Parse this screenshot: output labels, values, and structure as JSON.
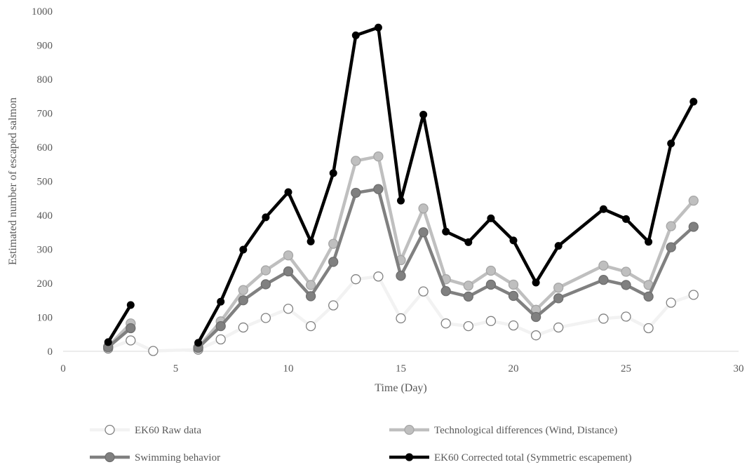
{
  "chart_data": {
    "type": "line",
    "xlabel": "Time (Day)",
    "ylabel": "Estimated number of escaped salmon",
    "xlim": [
      0,
      30
    ],
    "ylim": [
      0,
      1000
    ],
    "xticks": [
      0,
      5,
      10,
      15,
      20,
      25,
      30
    ],
    "yticks": [
      0,
      100,
      200,
      300,
      400,
      500,
      600,
      700,
      800,
      900,
      1000
    ],
    "grid": false,
    "legend_position": "bottom",
    "x": [
      2,
      3,
      4,
      6,
      7,
      8,
      9,
      10,
      11,
      12,
      13,
      14,
      15,
      16,
      17,
      18,
      19,
      20,
      21,
      22,
      24,
      25,
      26,
      27,
      28
    ],
    "series": [
      {
        "name": "EK60 Raw data",
        "color": "#f2f2f2",
        "marker_fill": "#ffffff",
        "marker_stroke": "#808080",
        "values": [
          8,
          32,
          1,
          5,
          35,
          70,
          98,
          125,
          74,
          135,
          212,
          220,
          97,
          176,
          82,
          74,
          89,
          76,
          47,
          70,
          96,
          102,
          68,
          143,
          166
        ]
      },
      {
        "name": "Technological differences (Wind, Distance)",
        "color": "#bfbfbf",
        "marker_fill": "#bfbfbf",
        "marker_stroke": "#a6a6a6",
        "values": [
          14,
          82,
          null,
          12,
          88,
          180,
          238,
          282,
          195,
          316,
          560,
          573,
          268,
          420,
          212,
          193,
          237,
          196,
          122,
          187,
          252,
          234,
          195,
          368,
          443
        ]
      },
      {
        "name": "Swimming behavior",
        "color": "#808080",
        "marker_fill": "#808080",
        "marker_stroke": "#6e6e6e",
        "values": [
          12,
          68,
          null,
          10,
          74,
          150,
          197,
          235,
          162,
          263,
          466,
          477,
          222,
          350,
          177,
          161,
          196,
          163,
          101,
          156,
          210,
          195,
          161,
          306,
          366
        ]
      },
      {
        "name": "EK60 Corrected total (Symmetric escapement)",
        "color": "#000000",
        "marker_fill": "#000000",
        "marker_stroke": "#000000",
        "values": [
          27,
          136,
          null,
          25,
          146,
          299,
          394,
          468,
          323,
          524,
          929,
          952,
          443,
          696,
          352,
          321,
          391,
          326,
          202,
          310,
          418,
          389,
          322,
          611,
          734
        ]
      }
    ]
  }
}
